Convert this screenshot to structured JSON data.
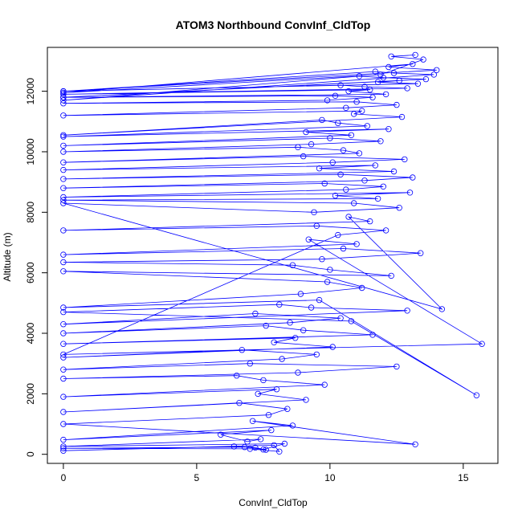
{
  "chart_data": {
    "type": "line",
    "title": "ATOM3 Northbound ConvInf_CldTop",
    "xlabel": "ConvInf_CldTop",
    "ylabel": "Altitude (m)",
    "xlim": [
      -0.6,
      16.3
    ],
    "ylim": [
      -300,
      13450
    ],
    "xticks": [
      0,
      5,
      10,
      15
    ],
    "xtick_labels": [
      "0",
      "5",
      "10",
      "15"
    ],
    "yticks": [
      0,
      2000,
      4000,
      6000,
      8000,
      10000,
      12000
    ],
    "ytick_labels": [
      "0",
      "2000",
      "4000",
      "6000",
      "8000",
      "10000",
      "12000"
    ],
    "grid": false,
    "legend": "none",
    "marker": "open-circle",
    "color": "#0000ff",
    "series": [
      {
        "x": [
          7.6,
          7.2,
          6.4,
          0.0,
          7.9,
          8.1,
          7.0,
          0.0,
          6.8,
          7.5,
          8.3,
          0.0,
          7.4,
          6.9,
          5.9,
          7.8,
          0.0,
          8.6,
          7.1,
          13.2,
          0.0,
          7.7,
          8.4,
          6.6,
          0.0,
          9.1,
          7.3,
          8.0,
          0.0,
          9.8,
          7.5,
          6.5,
          0.0,
          8.8,
          12.5,
          7.0,
          0.0,
          8.2,
          9.5,
          6.7,
          0.0,
          10.1,
          7.9,
          8.7,
          0.0,
          11.6,
          9.0,
          7.6,
          0.0,
          8.5,
          10.4,
          7.2,
          0.0,
          12.9,
          9.3,
          8.1,
          0.0,
          10.8,
          15.5,
          9.6,
          0.0,
          8.9,
          11.2,
          9.9,
          0.0,
          12.3,
          10.0,
          8.6,
          0.0,
          9.7,
          13.4,
          10.5,
          0.0,
          11.0,
          9.2,
          15.7,
          0.0,
          10.3,
          12.1,
          9.5,
          0.0,
          11.5,
          10.7,
          14.2,
          0.0,
          9.4,
          12.6,
          10.9,
          0.0,
          11.8,
          10.2,
          13.0,
          0.0,
          10.6,
          12.0,
          9.8,
          0.0,
          11.3,
          13.1,
          10.4,
          0.0,
          12.4,
          9.6,
          11.7,
          0.0,
          10.1,
          12.8,
          9.0,
          0.0,
          11.1,
          10.5,
          8.8,
          0.0,
          9.3,
          11.9,
          10.0,
          0.0,
          10.8,
          9.1,
          12.2,
          0.0,
          11.4,
          10.3,
          9.7,
          0.0,
          12.7,
          10.9,
          11.2,
          0.0,
          10.6,
          12.5,
          11.0,
          0.0,
          9.9,
          11.6,
          10.2,
          0.0,
          12.1,
          10.7,
          11.5,
          0.0,
          12.9,
          11.3,
          10.4,
          0.0,
          13.3,
          11.8,
          12.6,
          0.0,
          13.6,
          12.0,
          11.1,
          0.0,
          13.9,
          12.4,
          11.7,
          0.0,
          14.0,
          12.2,
          13.1,
          0.0,
          11.9,
          13.5,
          12.3,
          13.2
        ],
        "y": [
          150,
          220,
          260,
          120,
          300,
          90,
          180,
          200,
          240,
          160,
          350,
          260,
          500,
          420,
          650,
          800,
          480,
          950,
          1100,
          330,
          1000,
          1300,
          1500,
          1700,
          1400,
          1800,
          2000,
          2150,
          1900,
          2300,
          2450,
          2600,
          2500,
          2700,
          2900,
          3000,
          2800,
          3150,
          3300,
          3450,
          3200,
          3550,
          3700,
          3850,
          3650,
          3950,
          4100,
          4250,
          4000,
          4350,
          4500,
          4650,
          4300,
          4750,
          4850,
          4950,
          4700,
          4400,
          1950,
          5100,
          4850,
          5300,
          5500,
          5700,
          6050,
          5900,
          6100,
          6250,
          6350,
          6450,
          6650,
          6800,
          6600,
          6950,
          7100,
          3650,
          3300,
          7250,
          7400,
          7550,
          7400,
          7700,
          7850,
          4800,
          8300,
          8000,
          8150,
          8300,
          8400,
          8450,
          8550,
          8650,
          8500,
          8750,
          8850,
          8950,
          8800,
          9050,
          9150,
          9250,
          9100,
          9350,
          9450,
          9550,
          9400,
          9650,
          9750,
          9850,
          9650,
          9950,
          10050,
          10150,
          10000,
          10250,
          10350,
          10450,
          10200,
          10550,
          10650,
          10750,
          10500,
          10850,
          10950,
          11050,
          10550,
          11150,
          11250,
          11350,
          11200,
          11450,
          11550,
          11650,
          11600,
          11700,
          11800,
          11850,
          11800,
          11900,
          12000,
          12050,
          11900,
          12100,
          12150,
          12200,
          12000,
          12250,
          12300,
          12350,
          11800,
          12400,
          12450,
          12500,
          11700,
          12550,
          12600,
          12650,
          12000,
          12700,
          12800,
          12900,
          11950,
          12550,
          13050,
          13150,
          13200
        ]
      }
    ]
  }
}
